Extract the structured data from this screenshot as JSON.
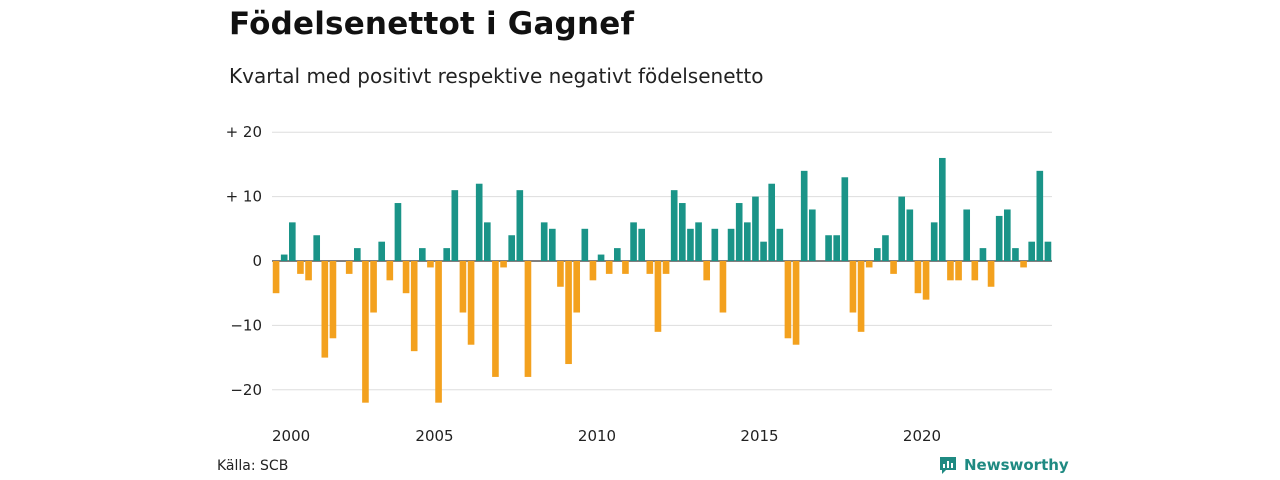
{
  "title": "Födelsenettot i Gagnef",
  "subtitle": "Kvartal med positivt respektive negativt födelsenetto",
  "source": "Källa: SCB",
  "brand": {
    "name": "Newsworthy",
    "icon": "newsworthy-logo-icon"
  },
  "colors": {
    "positive": "#1a9488",
    "negative": "#f3a11e",
    "grid": "#dddddd",
    "zero": "#333333"
  },
  "chart_data": {
    "type": "bar",
    "title": "Födelsenettot i Gagnef",
    "subtitle": "Kvartal med positivt respektive negativt födelsenetto",
    "xlabel": "",
    "ylabel": "",
    "start_year": 2000,
    "periods_per_year": 4,
    "x_ticks": [
      "2000",
      "2005",
      "2010",
      "2015",
      "2020"
    ],
    "y_ticks": [
      20,
      10,
      0,
      -10,
      -20
    ],
    "y_tick_labels": [
      "+ 20",
      "+ 10",
      "0",
      "−10",
      "−20"
    ],
    "ylim": [
      -22,
      20
    ],
    "grid": true,
    "values": [
      -5,
      1,
      6,
      -2,
      -3,
      4,
      -15,
      -12,
      0,
      -2,
      2,
      -22,
      -8,
      3,
      -3,
      9,
      -5,
      -14,
      2,
      -1,
      -22,
      2,
      11,
      -8,
      -13,
      12,
      6,
      -18,
      -1,
      4,
      11,
      -18,
      0,
      6,
      5,
      -4,
      -16,
      -8,
      5,
      -3,
      1,
      -2,
      2,
      -2,
      6,
      5,
      -2,
      -11,
      -2,
      11,
      9,
      5,
      6,
      -3,
      5,
      -8,
      5,
      9,
      6,
      10,
      3,
      12,
      5,
      -12,
      -13,
      14,
      8,
      0,
      4,
      4,
      13,
      -8,
      -11,
      -1,
      2,
      4,
      -2,
      10,
      8,
      -5,
      -6,
      6,
      16,
      -3,
      -3,
      8,
      -3,
      2,
      -4,
      7,
      8,
      2,
      -1,
      3,
      14,
      3
    ]
  }
}
